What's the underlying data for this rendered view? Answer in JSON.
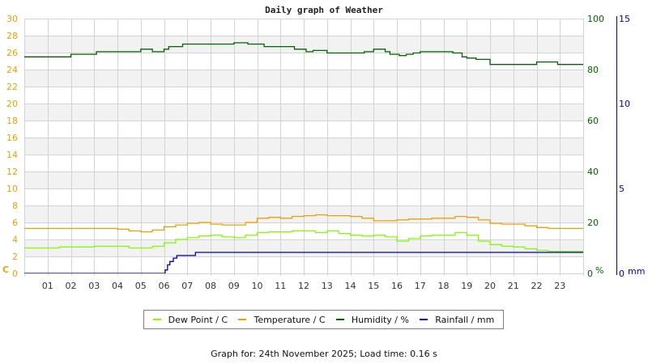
{
  "chart_data": {
    "type": "line",
    "title": "Daily graph of Weather",
    "xlabel": "",
    "x_tick_labels": [
      "01",
      "02",
      "03",
      "04",
      "05",
      "06",
      "07",
      "08",
      "09",
      "10",
      "11",
      "12",
      "13",
      "14",
      "15",
      "16",
      "17",
      "18",
      "19",
      "20",
      "21",
      "22",
      "23"
    ],
    "x_range_hours": [
      0,
      24
    ],
    "grid": true,
    "legend_position": "bottom",
    "axes": {
      "left": {
        "label": "C",
        "range": [
          0,
          30
        ],
        "ticks": [
          0,
          2,
          4,
          6,
          8,
          10,
          12,
          14,
          16,
          18,
          20,
          22,
          24,
          26,
          28,
          30
        ],
        "color": "#f0a000"
      },
      "right_humidity": {
        "label": "%",
        "range": [
          0,
          100
        ],
        "ticks": [
          0,
          20,
          40,
          60,
          80,
          100
        ],
        "color": "#006400"
      },
      "right_rainfall": {
        "label": "mm",
        "range": [
          0,
          15
        ],
        "ticks": [
          0,
          5,
          10,
          15
        ],
        "color": "#0000c0"
      }
    },
    "series": [
      {
        "name": "Dew Point / C",
        "axis": "left",
        "color": "#80ff00",
        "x": [
          0,
          0.5,
          1,
          1.5,
          2,
          2.5,
          3,
          3.5,
          4,
          4.5,
          5,
          5.5,
          6,
          6.5,
          7,
          7.5,
          8,
          8.5,
          9,
          9.5,
          10,
          10.5,
          11,
          11.5,
          12,
          12.5,
          13,
          13.5,
          14,
          14.5,
          15,
          15.5,
          16,
          16.5,
          17,
          17.5,
          18,
          18.5,
          19,
          19.5,
          20,
          20.5,
          21,
          21.5,
          22,
          22.5,
          23,
          23.5,
          24
        ],
        "values": [
          3.0,
          3.0,
          3.0,
          3.1,
          3.1,
          3.1,
          3.2,
          3.2,
          3.2,
          3.0,
          3.0,
          3.2,
          3.6,
          4.0,
          4.2,
          4.4,
          4.5,
          4.3,
          4.2,
          4.5,
          4.8,
          4.9,
          4.9,
          5.0,
          5.0,
          4.8,
          5.0,
          4.7,
          4.5,
          4.4,
          4.5,
          4.3,
          3.8,
          4.1,
          4.4,
          4.5,
          4.5,
          4.8,
          4.5,
          3.8,
          3.4,
          3.2,
          3.1,
          2.9,
          2.7,
          2.6,
          2.6,
          2.6,
          2.6
        ]
      },
      {
        "name": "Temperature / C",
        "axis": "left",
        "color": "#f0a000",
        "x": [
          0,
          0.5,
          1,
          1.5,
          2,
          2.5,
          3,
          3.5,
          4,
          4.5,
          5,
          5.5,
          6,
          6.5,
          7,
          7.5,
          8,
          8.5,
          9,
          9.5,
          10,
          10.5,
          11,
          11.5,
          12,
          12.5,
          13,
          13.5,
          14,
          14.5,
          15,
          15.5,
          16,
          16.5,
          17,
          17.5,
          18,
          18.5,
          19,
          19.5,
          20,
          20.5,
          21,
          21.5,
          22,
          22.5,
          23,
          23.5,
          24
        ],
        "values": [
          5.3,
          5.3,
          5.3,
          5.3,
          5.3,
          5.3,
          5.3,
          5.3,
          5.2,
          5.0,
          4.9,
          5.1,
          5.5,
          5.7,
          5.9,
          6.0,
          5.8,
          5.7,
          5.7,
          6.0,
          6.5,
          6.6,
          6.5,
          6.7,
          6.8,
          6.9,
          6.8,
          6.8,
          6.7,
          6.5,
          6.2,
          6.2,
          6.3,
          6.4,
          6.4,
          6.5,
          6.5,
          6.7,
          6.6,
          6.3,
          5.9,
          5.8,
          5.8,
          5.6,
          5.4,
          5.3,
          5.3,
          5.3,
          5.3
        ]
      },
      {
        "name": "Humidity / %",
        "axis": "right_humidity",
        "color": "#006400",
        "x": [
          0,
          1.2,
          2.0,
          3.1,
          4.0,
          5.0,
          5.5,
          6.0,
          6.2,
          6.8,
          7.8,
          9.0,
          9.6,
          10.3,
          11.4,
          11.6,
          12.1,
          12.4,
          13.0,
          13.1,
          14.1,
          14.6,
          15.0,
          15.5,
          15.7,
          16.1,
          16.4,
          16.7,
          17.0,
          18.0,
          18.4,
          18.8,
          19.0,
          19.4,
          20.0,
          21.0,
          21.6,
          22.0,
          22.6,
          22.9,
          23.4,
          24.0
        ],
        "values": [
          85,
          85,
          86,
          87,
          87,
          88,
          87,
          88,
          89,
          90,
          90,
          90.5,
          90,
          89,
          89,
          88,
          87,
          87.5,
          86.5,
          86.5,
          86.5,
          87,
          88,
          87,
          86,
          85.5,
          86,
          86.5,
          87,
          87,
          86.5,
          85,
          84.5,
          84,
          82,
          82,
          82,
          83,
          83,
          82,
          82,
          82
        ]
      },
      {
        "name": "Rainfall / mm",
        "axis": "right_rainfall",
        "color": "#0000c0",
        "x": [
          0,
          5.98,
          6.05,
          6.15,
          6.25,
          6.4,
          6.55,
          7.35,
          24
        ],
        "values": [
          0,
          0,
          0.2,
          0.5,
          0.7,
          0.9,
          1.05,
          1.24,
          1.24
        ]
      }
    ]
  },
  "legend": {
    "items": [
      {
        "label": "Dew Point / C",
        "color": "#80ff00"
      },
      {
        "label": "Temperature / C",
        "color": "#f0a000"
      },
      {
        "label": "Humidity / %",
        "color": "#006400"
      },
      {
        "label": "Rainfall / mm",
        "color": "#0000c0"
      }
    ]
  },
  "footer": {
    "text": "Graph for: 24th November 2025; Load time: 0.16 s"
  }
}
